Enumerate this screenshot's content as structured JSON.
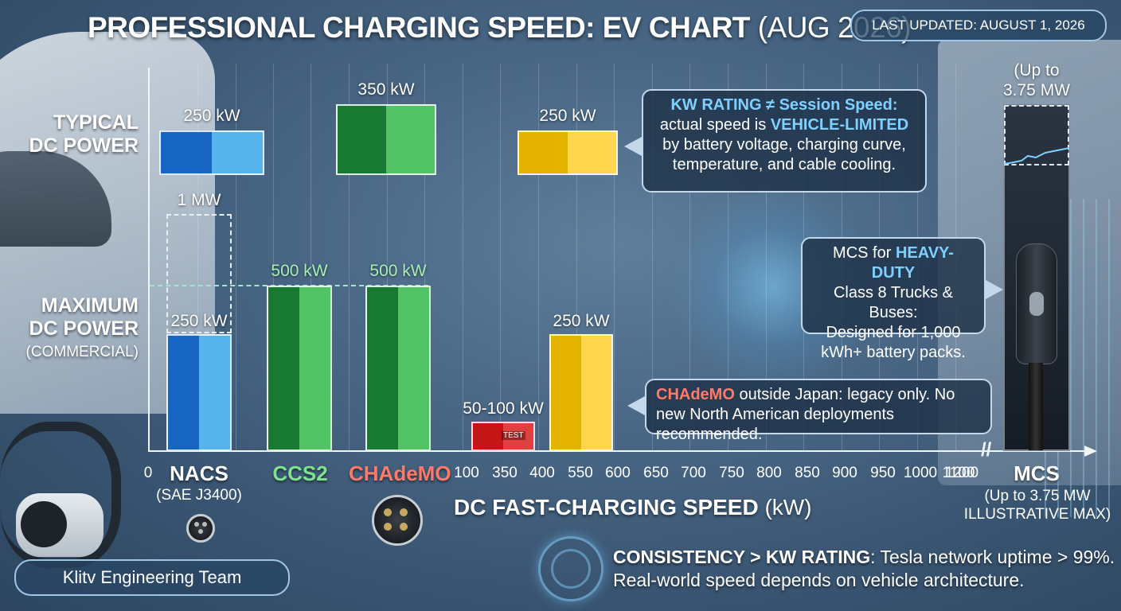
{
  "header": {
    "title": "PROFESSIONAL CHARGING SPEED: EV CHART",
    "title_suffix": "(AUG 2026)",
    "last_updated": "LAST UPDATED: AUGUST 1, 2026"
  },
  "row_labels": {
    "typical_line1": "TYPICAL",
    "typical_line2": "DC POWER",
    "max_line1": "MAXIMUM",
    "max_line2": "DC POWER",
    "max_sub": "(COMMERCIAL)"
  },
  "chart_data": {
    "type": "bar",
    "xlabel": "DC FAST-CHARGING SPEED",
    "xlabel_unit": "(kW)",
    "x_ticks": [
      "0",
      "100",
      "350",
      "400",
      "550",
      "600",
      "650",
      "700",
      "750",
      "800",
      "850",
      "900",
      "950",
      "1000",
      "1100",
      "1200"
    ],
    "categories": [
      {
        "name": "NACS",
        "sub": "(SAE J3400)",
        "color": "#1f78d1"
      },
      {
        "name": "CCS2",
        "sub": "",
        "color": "#2fb24c"
      },
      {
        "name": "CHAdeMO",
        "sub": "",
        "color": "#e8584a"
      },
      {
        "name": "MCS",
        "sub": "(Up to 3.75 MW ILLUSTRATIVE MAX)",
        "color": "#ffffff"
      }
    ],
    "typical": [
      {
        "label": "250 kW",
        "value": 250,
        "color_dark": "#1766c4",
        "color_light": "#55b4ec"
      },
      {
        "label": "350 kW",
        "value": 350,
        "color_dark": "#187a32",
        "color_light": "#52c466"
      },
      {
        "label": "250 kW",
        "value": 250,
        "color_dark": "#e3b300",
        "color_light": "#ffd64d"
      }
    ],
    "maximum": [
      {
        "label": "250 kW",
        "value": 250,
        "dashed_label": "1 MW",
        "color_dark": "#1766c4",
        "color_light": "#55b4ec"
      },
      {
        "label": "500 kW",
        "value": 500,
        "color_dark": "#187a32",
        "color_light": "#52c466"
      },
      {
        "label": "500 kW",
        "value": 500,
        "color_dark": "#187a32",
        "color_light": "#52c466"
      },
      {
        "label": "50-100 kW",
        "value": 100,
        "tag": "TEST",
        "color_dark": "#c41616",
        "color_light": "#e14040"
      },
      {
        "label": "250 kW",
        "value": 250,
        "color_dark": "#e3b300",
        "color_light": "#ffd64d"
      }
    ],
    "mcs": {
      "label_line1": "(Up to",
      "label_line2": "3.75 MW",
      "name": "MCS",
      "sub_line1": "(Up to 3.75 MW",
      "sub_line2": "ILLUSTRATIVE MAX)"
    }
  },
  "callouts": {
    "kw_rating": {
      "title": "KW RATING ≠ Session Speed:",
      "line2_pre": "actual speed is ",
      "line2_hl": "VEHICLE-LIMITED",
      "line3": "by battery voltage, charging curve,",
      "line4": "temperature, and cable cooling."
    },
    "mcs": {
      "line1_pre": "MCS for ",
      "line1_hl": "HEAVY-DUTY",
      "line2": "Class 8 Trucks & Buses:",
      "line3": "Designed for 1,000",
      "line4": "kWh+ battery packs."
    },
    "chademo": {
      "hl": "CHAdeMO",
      "line1": " outside Japan: legacy only. No",
      "line2": "new North American deployments recommended."
    }
  },
  "footer": {
    "team": "Klitv Engineering Team",
    "line1_bold": "CONSISTENCY > KW RATING",
    "line1_rest": ": Tesla network uptime > 99%.",
    "line2": "Real-world speed depends on vehicle architecture."
  }
}
